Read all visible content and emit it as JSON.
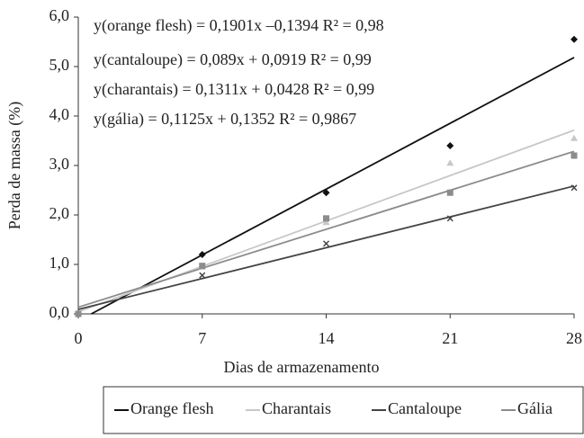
{
  "chart_data": {
    "type": "scatter",
    "xlabel": "Dias de armazenamento",
    "ylabel": "Perda de massa (%)",
    "x": [
      0,
      7,
      14,
      21,
      28
    ],
    "xlim": [
      0,
      28
    ],
    "xticks": [
      0,
      7,
      14,
      21,
      28
    ],
    "ylim": [
      0,
      6
    ],
    "yticks": [
      {
        "value": 0,
        "label": "0,0"
      },
      {
        "value": 1,
        "label": "1,0"
      },
      {
        "value": 2,
        "label": "2,0"
      },
      {
        "value": 3,
        "label": "3,0"
      },
      {
        "value": 4,
        "label": "4,0"
      },
      {
        "value": 5,
        "label": "5,0"
      },
      {
        "value": 6,
        "label": "6,0"
      }
    ],
    "annotations": [
      "y(orange flesh) = 0,1901x –0,1394 R² = 0,98",
      "y(cantaloupe) = 0,089x + 0,0919 R² = 0,99",
      "y(charantais) = 0,1311x + 0,0428 R² = 0,99",
      "y(gália) = 0,1125x + 0,1352 R² = 0,9867"
    ],
    "series": [
      {
        "name": "Orange flesh",
        "color": "#111111",
        "marker": "diamond",
        "values": [
          0,
          1.2,
          2.45,
          3.4,
          5.55
        ],
        "trend": {
          "slope": 0.1901,
          "intercept": -0.1394
        }
      },
      {
        "name": "Charantais",
        "color": "#c8c8c8",
        "marker": "triangle",
        "values": [
          0,
          0.95,
          1.85,
          3.05,
          3.55
        ],
        "trend": {
          "slope": 0.1311,
          "intercept": 0.0428
        }
      },
      {
        "name": "Cantaloupe",
        "color": "#444444",
        "marker": "cross",
        "values": [
          0,
          0.78,
          1.42,
          1.93,
          2.55
        ],
        "trend": {
          "slope": 0.089,
          "intercept": 0.0919
        }
      },
      {
        "name": "Gália",
        "color": "#8c8c8c",
        "marker": "square",
        "values": [
          0,
          0.97,
          1.93,
          2.45,
          3.2
        ],
        "trend": {
          "slope": 0.1125,
          "intercept": 0.1352
        }
      }
    ]
  }
}
